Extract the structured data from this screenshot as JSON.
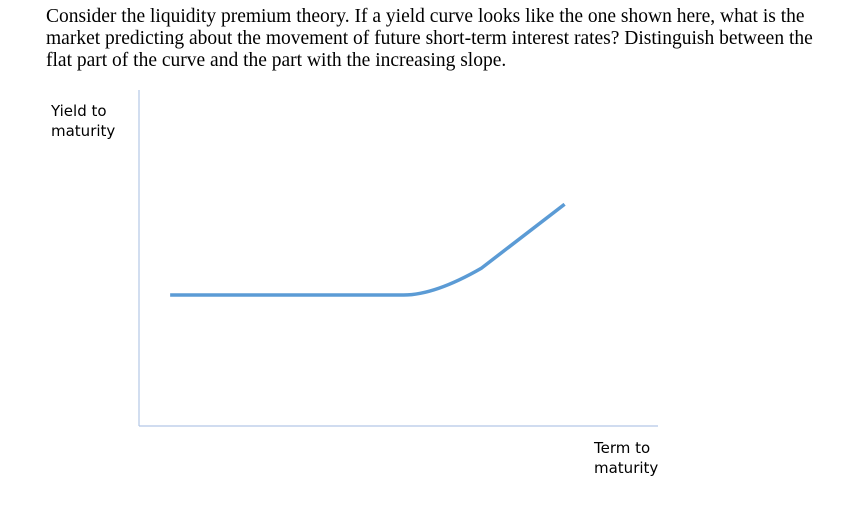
{
  "question": "Consider the liquidity premium theory. If a yield curve looks like the one shown here, what is the market predicting about the movement of future short-term interest rates? Distinguish between the flat part of the curve and the part with the increasing slope.",
  "chart_data": {
    "type": "line",
    "title": "",
    "xlabel": "Term to\nmaturity",
    "ylabel": "Yield to\nmaturity",
    "x_ticks": false,
    "y_ticks": false,
    "grid": false,
    "legend": "none",
    "xlim": [
      0,
      10
    ],
    "ylim": [
      0,
      10
    ],
    "series": [
      {
        "color": "#5b9bd5",
        "shape": "flat then upward-sloping",
        "points": [
          [
            0.6,
            3.9
          ],
          [
            5.1,
            3.9
          ],
          [
            5.7,
            4.0
          ],
          [
            6.6,
            4.7
          ],
          [
            8.2,
            6.6
          ]
        ]
      }
    ],
    "axis_color": "#b4c7e7"
  }
}
